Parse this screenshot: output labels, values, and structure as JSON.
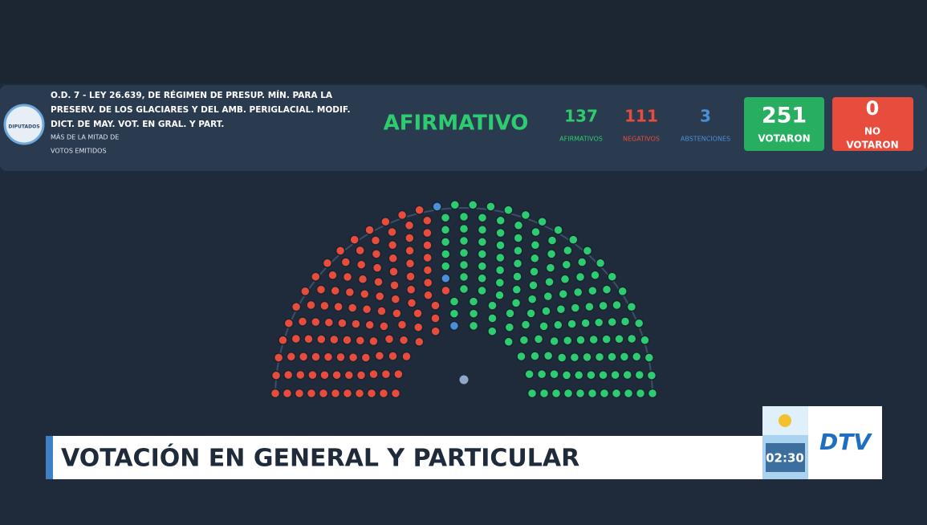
{
  "header": {
    "logo": "DIPUTADOS",
    "lines": [
      "O.D. 7 - LEY 26.639, DE RÉGIMEN DE PRESUP. MÍN. PARA LA",
      "PRESERV. DE LOS GLACIARES Y DEL AMB. PERIGLACIAL. MODIF.",
      "DICT. DE MAY. VOT. EN GRAL. Y PART."
    ],
    "note": [
      "MÁS DE LA MITAD DE",
      "VOTOS EMITIDOS"
    ]
  },
  "result": "AFIRMATIVO",
  "tally": [
    {
      "value": 137,
      "label": "AFIRMATIVOS",
      "color": "#2ecc71"
    },
    {
      "value": 111,
      "label": "NEGATIVOS",
      "color": "#e74c3c"
    },
    {
      "value": 3,
      "label": "ABSTENCIONES",
      "color": "#4a90d9"
    }
  ],
  "voted": {
    "value": 251,
    "label": "VOTARON"
  },
  "not_voted": {
    "value": 0,
    "label": [
      "NO",
      "VOTARON"
    ]
  },
  "lower_third": "VOTACIÓN EN GENERAL Y PARTICULAR",
  "clock": "02:30",
  "channel": "DTV"
}
